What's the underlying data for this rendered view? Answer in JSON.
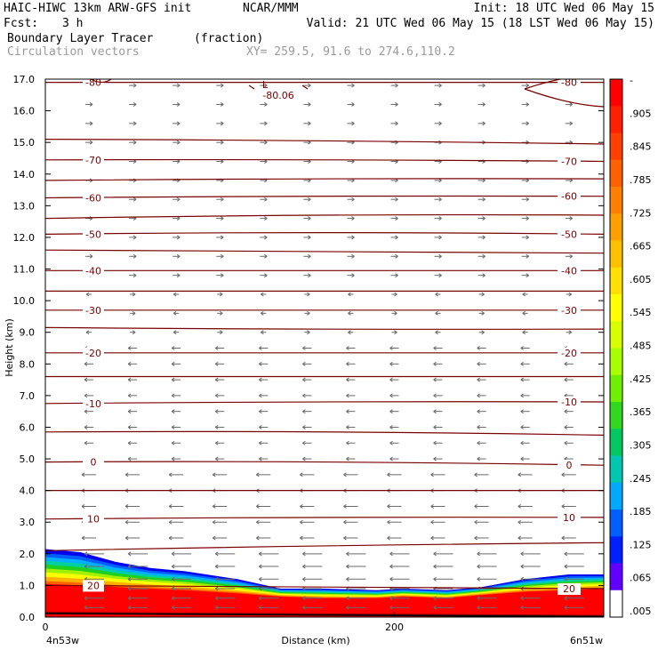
{
  "header": {
    "model": "HAIC-HIWC 13km ARW-GFS init",
    "org": "NCAR/MMM",
    "init": "Init: 18 UTC Wed 06 May 15",
    "fcst_label": "Fcst:",
    "fcst_value": "3 h",
    "valid": "Valid: 21 UTC Wed 06 May 15 (18 LST Wed 06 May 15)",
    "field_name": "Boundary Layer Tracer",
    "field_unit": "(fraction)",
    "vector_name": "Circulation vectors",
    "xy_range": "XY= 259.5, 91.6 to 274.6,110.2"
  },
  "chart_data": {
    "type": "cross-section",
    "ylabel": "Height (km)",
    "xlabel": "Distance (km)",
    "ylim": [
      0,
      17
    ],
    "xlim": [
      0,
      320
    ],
    "yticks": [
      "0.0",
      "1.0",
      "2.0",
      "3.0",
      "4.0",
      "5.0",
      "6.0",
      "7.0",
      "8.0",
      "9.0",
      "10.0",
      "11.0",
      "12.0",
      "13.0",
      "14.0",
      "15.0",
      "16.0",
      "17.0"
    ],
    "xticks": [
      {
        "value": 0,
        "label": "0"
      },
      {
        "value": 200,
        "label": "200"
      }
    ],
    "endpoint_labels": {
      "left": "4n53w",
      "right": "6n51w"
    },
    "tracer_top_km": [
      [
        0,
        2.15
      ],
      [
        20,
        2.05
      ],
      [
        40,
        1.75
      ],
      [
        60,
        1.55
      ],
      [
        80,
        1.45
      ],
      [
        110,
        1.2
      ],
      [
        135,
        0.9
      ],
      [
        160,
        0.9
      ],
      [
        190,
        0.85
      ],
      [
        205,
        0.9
      ],
      [
        230,
        0.85
      ],
      [
        250,
        0.95
      ],
      [
        275,
        1.2
      ],
      [
        300,
        1.35
      ],
      [
        320,
        1.35
      ]
    ],
    "tracer_core_top_km": [
      [
        0,
        1.05
      ],
      [
        20,
        1.0
      ],
      [
        40,
        0.95
      ],
      [
        60,
        0.9
      ],
      [
        80,
        0.85
      ],
      [
        110,
        0.75
      ],
      [
        135,
        0.65
      ],
      [
        160,
        0.6
      ],
      [
        190,
        0.6
      ],
      [
        205,
        0.65
      ],
      [
        230,
        0.6
      ],
      [
        250,
        0.7
      ],
      [
        275,
        0.8
      ],
      [
        300,
        0.85
      ],
      [
        320,
        0.9
      ]
    ],
    "temperature_contours_C": [
      {
        "value": -80,
        "label": "-80",
        "heights_km": [
          16.9,
          16.9,
          16.9
        ]
      },
      {
        "value": -75,
        "label": "",
        "heights_km": [
          15.1,
          15.05,
          14.95
        ]
      },
      {
        "value": -70,
        "label": "-70",
        "heights_km": [
          14.45,
          14.45,
          14.4
        ]
      },
      {
        "value": -65,
        "label": "",
        "heights_km": [
          13.8,
          13.85,
          13.85
        ]
      },
      {
        "value": -60,
        "label": "-60",
        "heights_km": [
          13.25,
          13.3,
          13.3
        ]
      },
      {
        "value": -55,
        "label": "",
        "heights_km": [
          12.6,
          12.7,
          12.7
        ]
      },
      {
        "value": -50,
        "label": "-50",
        "heights_km": [
          12.1,
          12.15,
          12.1
        ]
      },
      {
        "value": -45,
        "label": "",
        "heights_km": [
          11.6,
          11.55,
          11.5
        ]
      },
      {
        "value": -40,
        "label": "-40",
        "heights_km": [
          10.95,
          10.95,
          10.95
        ]
      },
      {
        "value": -35,
        "label": "",
        "heights_km": [
          10.3,
          10.3,
          10.3
        ]
      },
      {
        "value": -30,
        "label": "-30",
        "heights_km": [
          9.7,
          9.7,
          9.7
        ]
      },
      {
        "value": -25,
        "label": "",
        "heights_km": [
          9.15,
          9.1,
          9.1
        ]
      },
      {
        "value": -20,
        "label": "-20",
        "heights_km": [
          8.35,
          8.35,
          8.35
        ]
      },
      {
        "value": -15,
        "label": "",
        "heights_km": [
          7.6,
          7.6,
          7.6
        ]
      },
      {
        "value": -10,
        "label": "-10",
        "heights_km": [
          6.75,
          6.8,
          6.8
        ]
      },
      {
        "value": -5,
        "label": "",
        "heights_km": [
          5.85,
          5.85,
          5.75
        ]
      },
      {
        "value": 0,
        "label": "0",
        "heights_km": [
          4.9,
          4.9,
          4.8
        ]
      },
      {
        "value": 5,
        "label": "",
        "heights_km": [
          4.0,
          4.0,
          4.0
        ]
      },
      {
        "value": 10,
        "label": "10",
        "heights_km": [
          3.1,
          3.15,
          3.15
        ]
      },
      {
        "value": 15,
        "label": "",
        "heights_km": [
          2.1,
          2.25,
          2.35
        ]
      },
      {
        "value": 20,
        "label": "20",
        "heights_km": [
          1.0,
          0.95,
          0.9
        ]
      },
      {
        "value": 25,
        "label": "",
        "heights_km": [
          0.15,
          0.1,
          0.05
        ]
      }
    ],
    "low_center": {
      "label": "L",
      "value": "-80.06",
      "x_km": 133,
      "y_km": 16.7
    },
    "colorbar": {
      "labels": [
        "-",
        ".905",
        ".845",
        ".785",
        ".725",
        ".665",
        ".605",
        ".545",
        ".485",
        ".425",
        ".365",
        ".305",
        ".245",
        ".185",
        ".125",
        ".065",
        ".005"
      ],
      "colors": [
        "#ff0000",
        "#ff2000",
        "#ff4000",
        "#ff6000",
        "#ff8000",
        "#ffa000",
        "#ffc000",
        "#ffe000",
        "#ffff00",
        "#d8ff00",
        "#a8ff00",
        "#70f000",
        "#30d820",
        "#00c860",
        "#00c8b0",
        "#00a8ff",
        "#0060ff",
        "#0020ff",
        "#6000ff",
        "#ffffff"
      ]
    }
  }
}
